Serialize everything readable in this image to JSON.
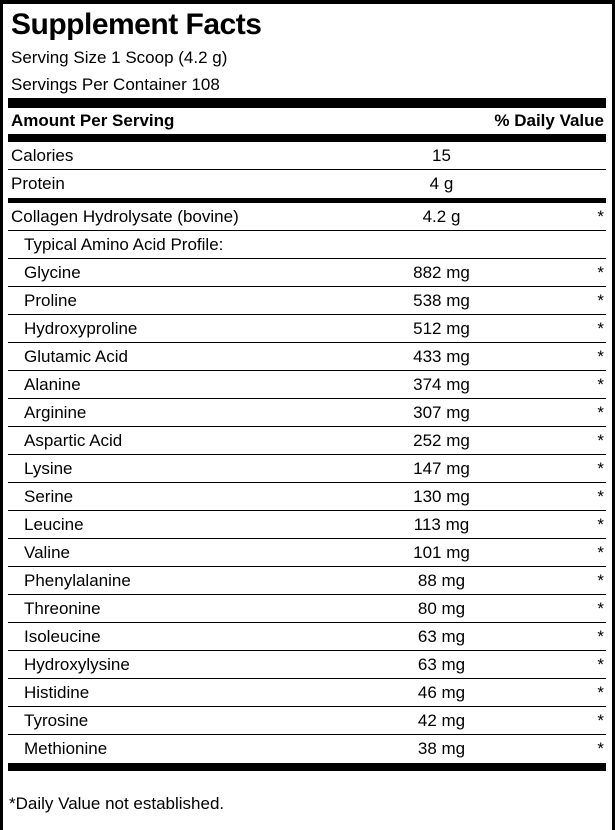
{
  "label": {
    "title": "Supplement Facts",
    "serving_size": "Serving Size 1 Scoop (4.2 g)",
    "servings_per_container": "Servings Per Container 108",
    "footnote": "*Daily Value not established.",
    "colors": {
      "text": "#000000",
      "background": "#ffffff",
      "rule": "#000000"
    }
  },
  "table": {
    "header": {
      "amount_per_serving": "Amount Per Serving",
      "percent_daily_value": "% Daily Value"
    },
    "main_rows": [
      {
        "name": "Calories",
        "amount": "15",
        "dv": ""
      },
      {
        "name": "Protein",
        "amount": "4 g",
        "dv": ""
      }
    ],
    "collagen_row": {
      "name": "Collagen Hydrolysate (bovine)",
      "amount": "4.2 g",
      "dv": "*"
    },
    "amino_heading": "Typical Amino Acid Profile:",
    "amino_rows": [
      {
        "name": "Glycine",
        "amount": "882 mg",
        "dv": "*"
      },
      {
        "name": "Proline",
        "amount": "538 mg",
        "dv": "*"
      },
      {
        "name": "Hydroxyproline",
        "amount": "512 mg",
        "dv": "*"
      },
      {
        "name": "Glutamic Acid",
        "amount": "433 mg",
        "dv": "*"
      },
      {
        "name": "Alanine",
        "amount": "374 mg",
        "dv": "*"
      },
      {
        "name": "Arginine",
        "amount": "307 mg",
        "dv": "*"
      },
      {
        "name": "Aspartic Acid",
        "amount": "252 mg",
        "dv": "*"
      },
      {
        "name": "Lysine",
        "amount": "147 mg",
        "dv": "*"
      },
      {
        "name": "Serine",
        "amount": "130 mg",
        "dv": "*"
      },
      {
        "name": "Leucine",
        "amount": "113 mg",
        "dv": "*"
      },
      {
        "name": "Valine",
        "amount": "101 mg",
        "dv": "*"
      },
      {
        "name": "Phenylalanine",
        "amount": "88 mg",
        "dv": "*"
      },
      {
        "name": "Threonine",
        "amount": "80 mg",
        "dv": "*"
      },
      {
        "name": "Isoleucine",
        "amount": "63 mg",
        "dv": "*"
      },
      {
        "name": "Hydroxylysine",
        "amount": "63 mg",
        "dv": "*"
      },
      {
        "name": "Histidine",
        "amount": "46 mg",
        "dv": "*"
      },
      {
        "name": "Tyrosine",
        "amount": "42 mg",
        "dv": "*"
      },
      {
        "name": "Methionine",
        "amount": "38 mg",
        "dv": "*"
      }
    ]
  }
}
